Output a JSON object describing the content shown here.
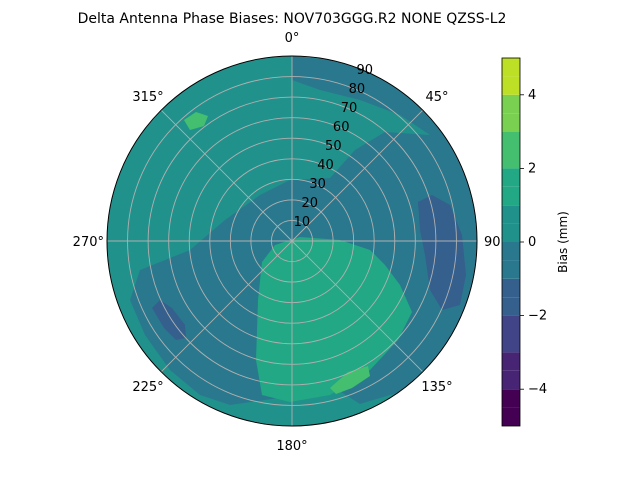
{
  "chart_data": {
    "type": "polar-contour",
    "title": "Delta Antenna Phase Biases: NOV703GGG.R2    NONE QZSS-L2",
    "angular_ticks": [
      "0°",
      "45°",
      "90°",
      "135°",
      "180°",
      "225°",
      "270°",
      "315°"
    ],
    "radial_ticks": [
      "10",
      "20",
      "30",
      "40",
      "50",
      "60",
      "70",
      "80",
      "90"
    ],
    "radial_lim": [
      0,
      90
    ],
    "grid": true,
    "colorbar": {
      "label": "Bias (mm)",
      "ticks": [
        "−4",
        "−2",
        "0",
        "2",
        "4"
      ],
      "range": [
        -5,
        5
      ],
      "levels": [
        -5,
        -4.5,
        -4,
        -3.5,
        -3,
        -2.5,
        -2,
        -1.5,
        -1,
        -0.5,
        0,
        0.5,
        1,
        1.5,
        2,
        2.5,
        3,
        3.5,
        4,
        4.5,
        5
      ],
      "bands": [
        "#440154",
        "#482475",
        "#414487",
        "#355f8d",
        "#2a788e",
        "#21918c",
        "#22a884",
        "#44bf70",
        "#7ad151",
        "#bddf26",
        "#fde725"
      ]
    },
    "regions": [
      {
        "level": 0.25,
        "color": "#21918c",
        "desc": "base field"
      },
      {
        "level": -0.75,
        "color": "#2a788e",
        "desc": "ring and east sector"
      },
      {
        "level": 0.75,
        "color": "#22a884",
        "desc": "south lobe"
      },
      {
        "level": -1.25,
        "color": "#355f8d",
        "desc": "east band 85-90 deg"
      },
      {
        "level": -1.25,
        "color": "#355f8d",
        "desc": "small patch near 225 deg"
      },
      {
        "level": 1.25,
        "color": "#44bf70",
        "desc": "patch near 330 deg"
      },
      {
        "level": 1.25,
        "color": "#44bf70",
        "desc": "patch near 160 deg"
      }
    ]
  }
}
